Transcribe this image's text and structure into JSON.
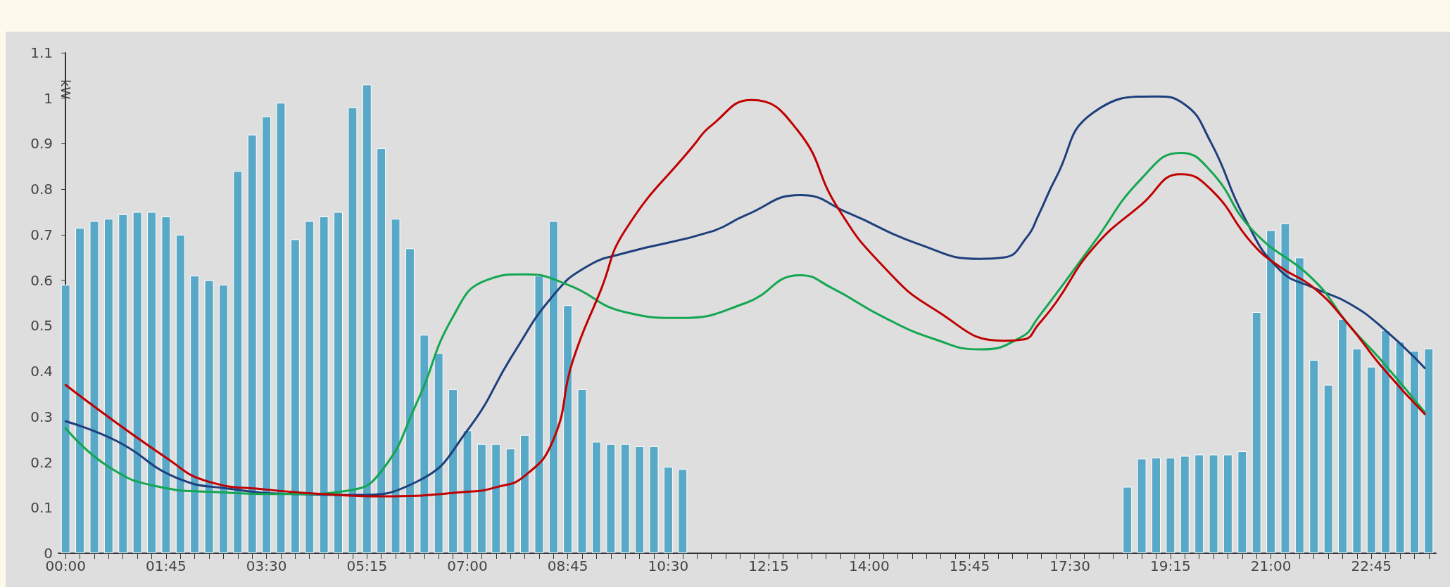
{
  "chart_data": {
    "type": "bar",
    "ylabel": "kW",
    "x": [
      0,
      0.25,
      0.5,
      0.75,
      1,
      1.25,
      1.5,
      1.75,
      2,
      2.25,
      2.5,
      2.75,
      3,
      3.25,
      3.5,
      3.75,
      4,
      4.25,
      4.5,
      4.75,
      5,
      5.25,
      5.5,
      5.75,
      6,
      6.25,
      6.5,
      6.75,
      7,
      7.25,
      7.5,
      7.75,
      8,
      8.25,
      8.5,
      8.75,
      9,
      9.25,
      9.5,
      9.75,
      10,
      10.25,
      10.5,
      10.75,
      11,
      11.25,
      11.5,
      11.75,
      12,
      12.25,
      12.5,
      12.75,
      13,
      13.25,
      13.5,
      13.75,
      14,
      14.25,
      14.5,
      14.75,
      15,
      15.25,
      15.5,
      15.75,
      16,
      16.25,
      16.5,
      16.75,
      17,
      17.25,
      17.5,
      17.75,
      18,
      18.25,
      18.5,
      18.75,
      19,
      19.25,
      19.5,
      19.75,
      20,
      20.25,
      20.5,
      20.75,
      21,
      21.25,
      21.5,
      21.75,
      22,
      22.25,
      22.5,
      22.75,
      23,
      23.25,
      23.5,
      23.75
    ],
    "series": [
      {
        "color": "#58a8c8",
        "values": [
          0.59,
          0.715,
          0.73,
          0.735,
          0.745,
          0.75,
          0.75,
          0.74,
          0.7,
          0.61,
          0.6,
          0.59,
          0.84,
          0.92,
          0.96,
          0.99,
          0.69,
          0.73,
          0.74,
          0.75,
          0.98,
          1.03,
          0.89,
          0.735,
          0.67,
          0.48,
          0.44,
          0.36,
          0.27,
          0.24,
          0.24,
          0.23,
          0.26,
          0.61,
          0.73,
          0.545,
          0.36,
          0.245,
          0.24,
          0.24,
          0.235,
          0.235,
          0.19,
          0.185,
          null,
          null,
          null,
          null,
          null,
          null,
          null,
          null,
          null,
          null,
          null,
          null,
          null,
          null,
          null,
          null,
          null,
          null,
          null,
          null,
          null,
          null,
          null,
          null,
          null,
          null,
          null,
          null,
          null,
          null,
          0.146,
          0.208,
          0.21,
          0.21,
          0.214,
          0.217,
          0.217,
          0.217,
          0.224,
          0.53,
          0.71,
          0.725,
          0.65,
          0.425,
          0.37,
          0.515,
          0.45,
          0.41,
          0.49,
          0.465,
          0.445,
          0.45
        ]
      },
      {
        "type": "line",
        "color": "#1e3f7c",
        "x": [
          0,
          0.9,
          1.93,
          2.83,
          4,
          5,
          6.13,
          7,
          7.81,
          8.5,
          9.08,
          9.75,
          11.25,
          11.85,
          12.8,
          13.65,
          14.85,
          15.93,
          16.35,
          16.75,
          16.95,
          17.25,
          17.9,
          19,
          19.48,
          19.95,
          20.55,
          21.15,
          21.75,
          22.35,
          22.95,
          23.68
        ],
        "values": [
          0.29,
          0.246,
          0.166,
          0.142,
          0.13,
          0.128,
          0.158,
          0.27,
          0.44,
          0.567,
          0.63,
          0.66,
          0.707,
          0.743,
          0.787,
          0.747,
          0.68,
          0.647,
          0.65,
          0.695,
          0.743,
          0.824,
          0.968,
          1.004,
          0.988,
          0.904,
          0.735,
          0.623,
          0.583,
          0.55,
          0.495,
          0.407
        ]
      },
      {
        "type": "line",
        "color": "#14a650",
        "x": [
          0,
          0.75,
          1.63,
          2.5,
          4,
          4.93,
          5.5,
          6.13,
          6.75,
          7.33,
          8,
          8.75,
          9.75,
          10.7,
          11.85,
          12.8,
          13.35,
          14.25,
          15.15,
          15.93,
          16.65,
          16.95,
          17.9,
          18.75,
          19.43,
          19.95,
          20.68,
          21.75,
          22.35,
          22.95,
          23.68
        ],
        "values": [
          0.275,
          0.19,
          0.146,
          0.135,
          0.13,
          0.138,
          0.18,
          0.334,
          0.52,
          0.6,
          0.613,
          0.59,
          0.53,
          0.517,
          0.55,
          0.611,
          0.583,
          0.519,
          0.47,
          0.448,
          0.475,
          0.519,
          0.68,
          0.824,
          0.88,
          0.84,
          0.71,
          0.6,
          0.503,
          0.42,
          0.31
        ]
      },
      {
        "type": "line",
        "color": "#c00000",
        "x": [
          0,
          1.75,
          2.5,
          3.5,
          4.5,
          5.5,
          7,
          7.5,
          8,
          8.5,
          8.83,
          9.33,
          9.75,
          10.94,
          11.25,
          11.95,
          12.75,
          13.45,
          14.25,
          15.15,
          16.35,
          16.7,
          16.95,
          17.25,
          17.9,
          18.75,
          19.43,
          19.95,
          20.68,
          21.15,
          21.75,
          22.35,
          22.95,
          23.68
        ],
        "values": [
          0.37,
          0.21,
          0.157,
          0.14,
          0.13,
          0.125,
          0.135,
          0.145,
          0.17,
          0.25,
          0.42,
          0.58,
          0.71,
          0.896,
          0.94,
          0.996,
          0.93,
          0.76,
          0.63,
          0.535,
          0.467,
          0.47,
          0.503,
          0.55,
          0.67,
          0.767,
          0.833,
          0.8,
          0.68,
          0.63,
          0.583,
          0.503,
          0.407,
          0.306
        ]
      }
    ],
    "xlim": [
      -0.125,
      23.875
    ],
    "xticks": [
      {
        "value": 0,
        "label": "00:00"
      },
      {
        "value": 0.25,
        "label": null
      },
      {
        "value": 0.5,
        "label": null
      },
      {
        "value": 0.75,
        "label": null
      },
      {
        "value": 1,
        "label": null
      },
      {
        "value": 1.25,
        "label": null
      },
      {
        "value": 1.5,
        "label": null
      },
      {
        "value": 1.75,
        "label": "01:45"
      },
      {
        "value": 2,
        "label": null
      },
      {
        "value": 2.25,
        "label": null
      },
      {
        "value": 2.5,
        "label": null
      },
      {
        "value": 2.75,
        "label": null
      },
      {
        "value": 3,
        "label": null
      },
      {
        "value": 3.25,
        "label": null
      },
      {
        "value": 3.5,
        "label": "03:30"
      },
      {
        "value": 3.75,
        "label": null
      },
      {
        "value": 4,
        "label": null
      },
      {
        "value": 4.25,
        "label": null
      },
      {
        "value": 4.5,
        "label": null
      },
      {
        "value": 4.75,
        "label": null
      },
      {
        "value": 5,
        "label": null
      },
      {
        "value": 5.25,
        "label": "05:15"
      },
      {
        "value": 5.5,
        "label": null
      },
      {
        "value": 5.75,
        "label": null
      },
      {
        "value": 6,
        "label": null
      },
      {
        "value": 6.25,
        "label": null
      },
      {
        "value": 6.5,
        "label": null
      },
      {
        "value": 6.75,
        "label": null
      },
      {
        "value": 7,
        "label": "07:00"
      },
      {
        "value": 7.25,
        "label": null
      },
      {
        "value": 7.5,
        "label": null
      },
      {
        "value": 7.75,
        "label": null
      },
      {
        "value": 8,
        "label": null
      },
      {
        "value": 8.25,
        "label": null
      },
      {
        "value": 8.5,
        "label": null
      },
      {
        "value": 8.75,
        "label": "08:45"
      },
      {
        "value": 9,
        "label": null
      },
      {
        "value": 9.25,
        "label": null
      },
      {
        "value": 9.5,
        "label": null
      },
      {
        "value": 9.75,
        "label": null
      },
      {
        "value": 10,
        "label": null
      },
      {
        "value": 10.25,
        "label": null
      },
      {
        "value": 10.5,
        "label": "10:30"
      },
      {
        "value": 10.75,
        "label": null
      },
      {
        "value": 11,
        "label": null
      },
      {
        "value": 11.25,
        "label": null
      },
      {
        "value": 11.5,
        "label": null
      },
      {
        "value": 11.75,
        "label": null
      },
      {
        "value": 12,
        "label": null
      },
      {
        "value": 12.25,
        "label": "12:15"
      },
      {
        "value": 12.5,
        "label": null
      },
      {
        "value": 12.75,
        "label": null
      },
      {
        "value": 13,
        "label": null
      },
      {
        "value": 13.25,
        "label": null
      },
      {
        "value": 13.5,
        "label": null
      },
      {
        "value": 13.75,
        "label": null
      },
      {
        "value": 14,
        "label": "14:00"
      },
      {
        "value": 14.25,
        "label": null
      },
      {
        "value": 14.5,
        "label": null
      },
      {
        "value": 14.75,
        "label": null
      },
      {
        "value": 15,
        "label": null
      },
      {
        "value": 15.25,
        "label": null
      },
      {
        "value": 15.5,
        "label": null
      },
      {
        "value": 15.75,
        "label": "15:45"
      },
      {
        "value": 16,
        "label": null
      },
      {
        "value": 16.25,
        "label": null
      },
      {
        "value": 16.5,
        "label": null
      },
      {
        "value": 16.75,
        "label": null
      },
      {
        "value": 17,
        "label": null
      },
      {
        "value": 17.25,
        "label": null
      },
      {
        "value": 17.5,
        "label": "17:30"
      },
      {
        "value": 17.75,
        "label": null
      },
      {
        "value": 18,
        "label": null
      },
      {
        "value": 18.25,
        "label": null
      },
      {
        "value": 18.5,
        "label": null
      },
      {
        "value": 18.75,
        "label": null
      },
      {
        "value": 19,
        "label": null
      },
      {
        "value": 19.25,
        "label": "19:15"
      },
      {
        "value": 19.5,
        "label": null
      },
      {
        "value": 19.75,
        "label": null
      },
      {
        "value": 20,
        "label": null
      },
      {
        "value": 20.25,
        "label": null
      },
      {
        "value": 20.5,
        "label": null
      },
      {
        "value": 20.75,
        "label": null
      },
      {
        "value": 21,
        "label": "21:00"
      },
      {
        "value": 21.25,
        "label": null
      },
      {
        "value": 21.5,
        "label": null
      },
      {
        "value": 21.75,
        "label": null
      },
      {
        "value": 22,
        "label": null
      },
      {
        "value": 22.25,
        "label": null
      },
      {
        "value": 22.5,
        "label": null
      },
      {
        "value": 22.75,
        "label": "22:45"
      },
      {
        "value": 23,
        "label": null
      },
      {
        "value": 23.25,
        "label": null
      },
      {
        "value": 23.5,
        "label": null
      },
      {
        "value": 23.75,
        "label": null
      }
    ],
    "ylim": [
      0,
      1.1
    ],
    "yticks": [
      0,
      0.1,
      0.2,
      0.3,
      0.4,
      0.5,
      0.6,
      0.7,
      0.8,
      0.9,
      1,
      1.1
    ],
    "grid": false,
    "marker": "none",
    "line_style": "solid"
  }
}
